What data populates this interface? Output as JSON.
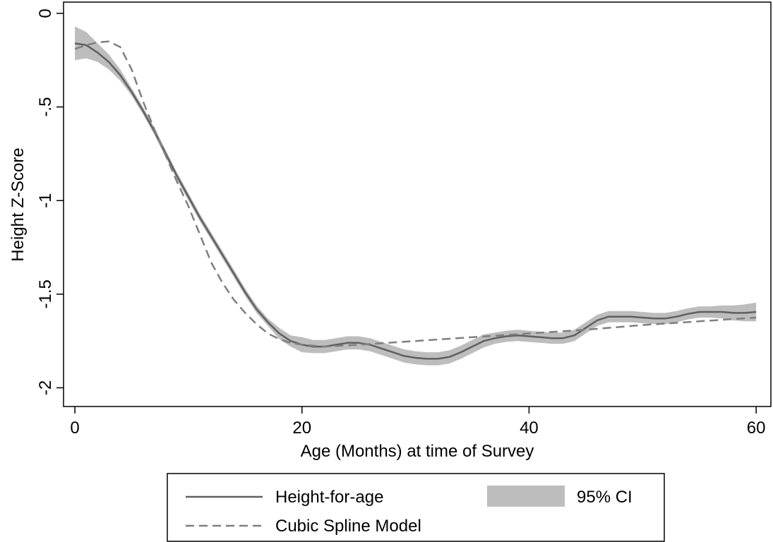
{
  "chart_data": {
    "type": "line",
    "title": "",
    "xlabel": "Age (Months) at time of Survey",
    "ylabel": "Height Z-Score",
    "xlim": [
      -1,
      61.3
    ],
    "ylim": [
      -2.1,
      0.06
    ],
    "xticks": [
      0,
      20,
      40,
      60
    ],
    "xtick_labels": [
      "0",
      "20",
      "40",
      "60"
    ],
    "yticks": [
      0,
      -0.5,
      -1,
      -1.5,
      -2
    ],
    "ytick_labels": [
      "0",
      "-.5",
      "-1",
      "-1.5",
      "-2"
    ],
    "grid": false,
    "legend_position": "bottom",
    "colors": {
      "line": "#5f5f5f",
      "spline": "#7f7f7f",
      "ci": "#bdbdbd"
    },
    "series": [
      {
        "name": "Height-for-age",
        "style": "solid",
        "x": [
          0,
          1,
          2,
          3,
          4,
          5,
          6,
          7,
          8,
          9,
          10,
          11,
          12,
          13,
          14,
          15,
          16,
          17,
          18,
          19,
          20,
          21,
          22,
          23,
          24,
          25,
          26,
          27,
          28,
          29,
          30,
          31,
          32,
          33,
          34,
          35,
          36,
          37,
          38,
          39,
          40,
          41,
          42,
          43,
          44,
          45,
          46,
          47,
          48,
          49,
          50,
          51,
          52,
          53,
          54,
          55,
          56,
          57,
          58,
          59,
          60
        ],
        "y": [
          -0.16,
          -0.17,
          -0.21,
          -0.26,
          -0.33,
          -0.42,
          -0.52,
          -0.63,
          -0.75,
          -0.87,
          -0.98,
          -1.09,
          -1.19,
          -1.29,
          -1.39,
          -1.49,
          -1.58,
          -1.65,
          -1.71,
          -1.75,
          -1.77,
          -1.78,
          -1.78,
          -1.77,
          -1.76,
          -1.76,
          -1.77,
          -1.79,
          -1.81,
          -1.83,
          -1.84,
          -1.845,
          -1.845,
          -1.835,
          -1.81,
          -1.78,
          -1.75,
          -1.735,
          -1.725,
          -1.72,
          -1.725,
          -1.73,
          -1.735,
          -1.735,
          -1.72,
          -1.68,
          -1.64,
          -1.62,
          -1.62,
          -1.62,
          -1.625,
          -1.63,
          -1.63,
          -1.62,
          -1.605,
          -1.595,
          -1.595,
          -1.595,
          -1.6,
          -1.6,
          -1.595
        ]
      },
      {
        "name": "95% CI",
        "type": "band",
        "x": [
          0,
          1,
          2,
          3,
          4,
          5,
          6,
          7,
          8,
          9,
          10,
          11,
          12,
          13,
          14,
          15,
          16,
          17,
          18,
          19,
          20,
          21,
          22,
          23,
          24,
          25,
          26,
          27,
          28,
          29,
          30,
          31,
          32,
          33,
          34,
          35,
          36,
          37,
          38,
          39,
          40,
          41,
          42,
          43,
          44,
          45,
          46,
          47,
          48,
          49,
          50,
          51,
          52,
          53,
          54,
          55,
          56,
          57,
          58,
          59,
          60
        ],
        "lower": [
          -0.25,
          -0.24,
          -0.26,
          -0.3,
          -0.36,
          -0.44,
          -0.54,
          -0.65,
          -0.77,
          -0.89,
          -1.0,
          -1.11,
          -1.21,
          -1.31,
          -1.41,
          -1.51,
          -1.6,
          -1.67,
          -1.74,
          -1.78,
          -1.81,
          -1.815,
          -1.815,
          -1.805,
          -1.795,
          -1.795,
          -1.805,
          -1.825,
          -1.845,
          -1.865,
          -1.875,
          -1.88,
          -1.88,
          -1.87,
          -1.845,
          -1.815,
          -1.785,
          -1.765,
          -1.755,
          -1.75,
          -1.755,
          -1.76,
          -1.765,
          -1.765,
          -1.75,
          -1.71,
          -1.67,
          -1.65,
          -1.65,
          -1.65,
          -1.655,
          -1.66,
          -1.66,
          -1.65,
          -1.635,
          -1.625,
          -1.625,
          -1.63,
          -1.64,
          -1.645,
          -1.645
        ],
        "upper": [
          -0.07,
          -0.1,
          -0.16,
          -0.22,
          -0.3,
          -0.4,
          -0.5,
          -0.61,
          -0.73,
          -0.85,
          -0.96,
          -1.07,
          -1.17,
          -1.27,
          -1.37,
          -1.47,
          -1.56,
          -1.63,
          -1.68,
          -1.72,
          -1.73,
          -1.745,
          -1.745,
          -1.735,
          -1.725,
          -1.725,
          -1.735,
          -1.755,
          -1.775,
          -1.795,
          -1.805,
          -1.81,
          -1.81,
          -1.8,
          -1.775,
          -1.745,
          -1.715,
          -1.705,
          -1.695,
          -1.69,
          -1.695,
          -1.7,
          -1.705,
          -1.705,
          -1.69,
          -1.65,
          -1.61,
          -1.59,
          -1.59,
          -1.59,
          -1.595,
          -1.6,
          -1.6,
          -1.59,
          -1.575,
          -1.565,
          -1.565,
          -1.56,
          -1.56,
          -1.555,
          -1.545
        ]
      },
      {
        "name": "Cubic Spline Model",
        "style": "dashed",
        "x": [
          0,
          1,
          2,
          3,
          4,
          5,
          6,
          7,
          8,
          9,
          10,
          11,
          12,
          13,
          14,
          15,
          16,
          17,
          18,
          19,
          20,
          22,
          25,
          30,
          35,
          40,
          45,
          50,
          55,
          60
        ],
        "y": [
          -0.19,
          -0.17,
          -0.155,
          -0.15,
          -0.18,
          -0.3,
          -0.47,
          -0.62,
          -0.76,
          -0.9,
          -1.03,
          -1.18,
          -1.33,
          -1.44,
          -1.53,
          -1.6,
          -1.66,
          -1.71,
          -1.74,
          -1.76,
          -1.77,
          -1.78,
          -1.77,
          -1.75,
          -1.73,
          -1.71,
          -1.69,
          -1.665,
          -1.645,
          -1.625
        ]
      }
    ],
    "legend": {
      "items": [
        {
          "label": "Height-for-age",
          "style": "solid"
        },
        {
          "label": "95% CI",
          "style": "band"
        },
        {
          "label": "Cubic Spline Model",
          "style": "dashed"
        }
      ]
    }
  }
}
